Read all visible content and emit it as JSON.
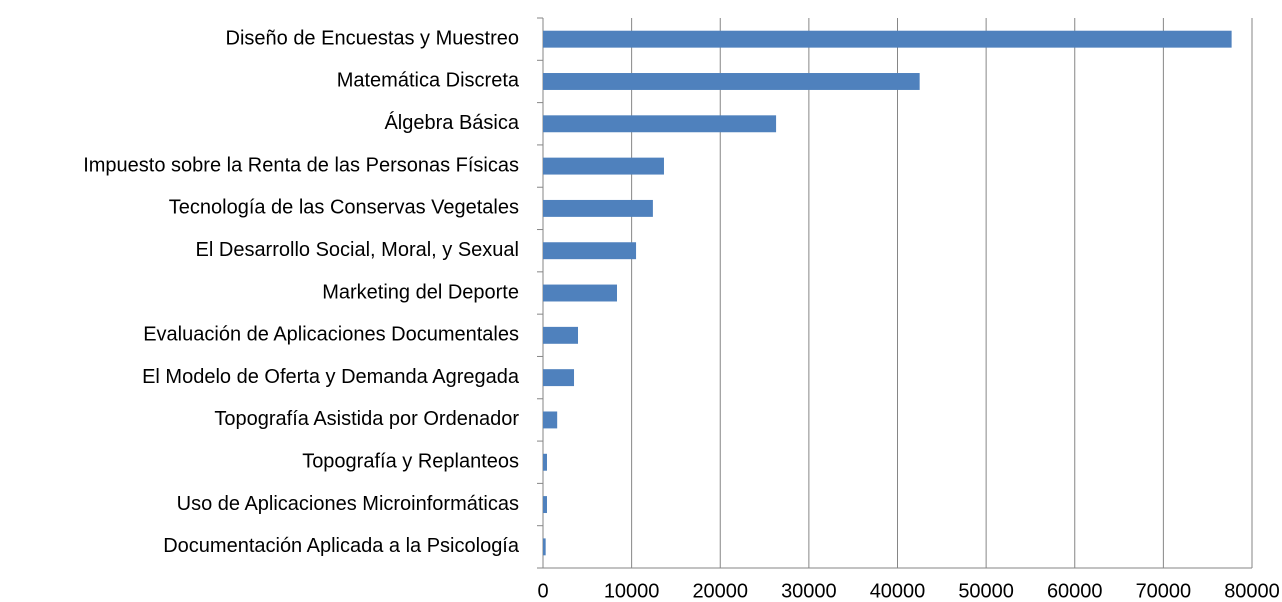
{
  "chart_data": {
    "type": "barh",
    "categories": [
      "Diseño de Encuestas y Muestreo",
      "Matemática Discreta",
      "Álgebra Básica",
      "Impuesto sobre la Renta de las Personas Físicas",
      "Tecnología de las Conservas Vegetales",
      "El Desarrollo Social, Moral, y Sexual",
      "Marketing del Deporte",
      "Evaluación de Aplicaciones Documentales",
      "El Modelo de Oferta y Demanda Agregada",
      "Topografía Asistida por Ordenador",
      "Topografía y Replanteos",
      "Uso de Aplicaciones Microinformáticas",
      "Documentación Aplicada a la Psicología"
    ],
    "values": [
      77700,
      42500,
      26300,
      13650,
      12400,
      10500,
      8350,
      3950,
      3500,
      1600,
      450,
      450,
      300
    ],
    "color": "#4f81bd",
    "xlim": [
      0,
      80000
    ],
    "xticks": [
      0,
      10000,
      20000,
      30000,
      40000,
      50000,
      60000,
      70000,
      80000
    ],
    "grid": true
  }
}
